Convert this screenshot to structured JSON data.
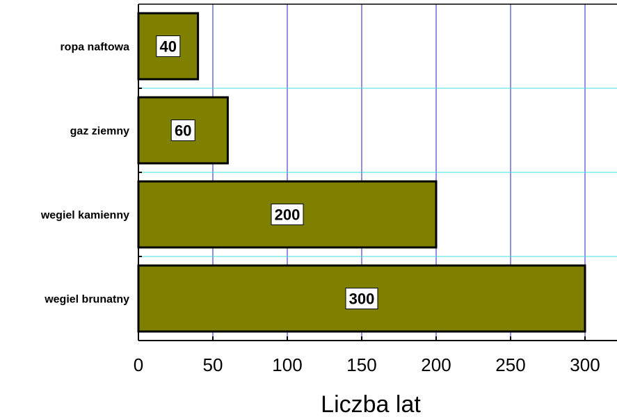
{
  "chart_data": {
    "type": "bar",
    "orientation": "horizontal",
    "categories": [
      "ropa naftowa",
      "gaz ziemny",
      "wegiel kamienny",
      "wegiel brunatny"
    ],
    "values": [
      40,
      60,
      200,
      300
    ],
    "xlabel": "Liczba lat",
    "xlim": [
      0,
      320
    ],
    "xticks": [
      0,
      50,
      100,
      150,
      200,
      250,
      300
    ],
    "grid": true,
    "legend": "none",
    "colors": {
      "bar": "#808000",
      "bar_edge": "#000000",
      "vgrid": "#2020c0",
      "hgrid": "#40e0e0",
      "label_box": "#ffffff"
    }
  }
}
